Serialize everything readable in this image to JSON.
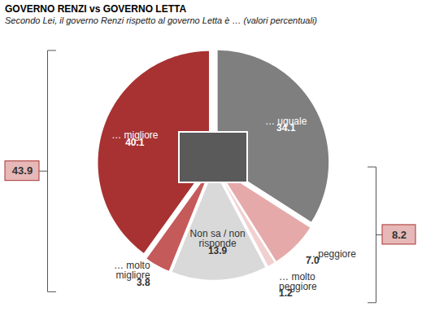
{
  "chart_data": {
    "type": "pie",
    "title": "GOVERNO RENZI vs GOVERNO LETTA",
    "subtitle": "Secondo Lei,  il governo Renzi rispetto al governo Letta è … (valori percentuali)",
    "categories": [
      "… uguale",
      "… peggiore",
      "… molto peggiore",
      "Non sa / non risponde",
      "… molto migliore",
      "… migliore"
    ],
    "values": [
      34.1,
      7.0,
      1.2,
      13.9,
      3.8,
      40.1
    ],
    "value_labels": [
      "34.1",
      "7.0",
      "1.2",
      "13.9",
      "3.8",
      "40.1"
    ],
    "colors": [
      "#7f7f7f",
      "#e6a9a9",
      "#f2d0d0",
      "#d9d9d9",
      "#c55a5a",
      "#a83232"
    ],
    "data_labels": true,
    "groups": [
      {
        "value": 43.9,
        "categories": [
          "… migliore",
          "… molto migliore"
        ]
      },
      {
        "value": 8.2,
        "categories": [
          "… peggiore",
          "… molto peggiore"
        ]
      }
    ]
  }
}
